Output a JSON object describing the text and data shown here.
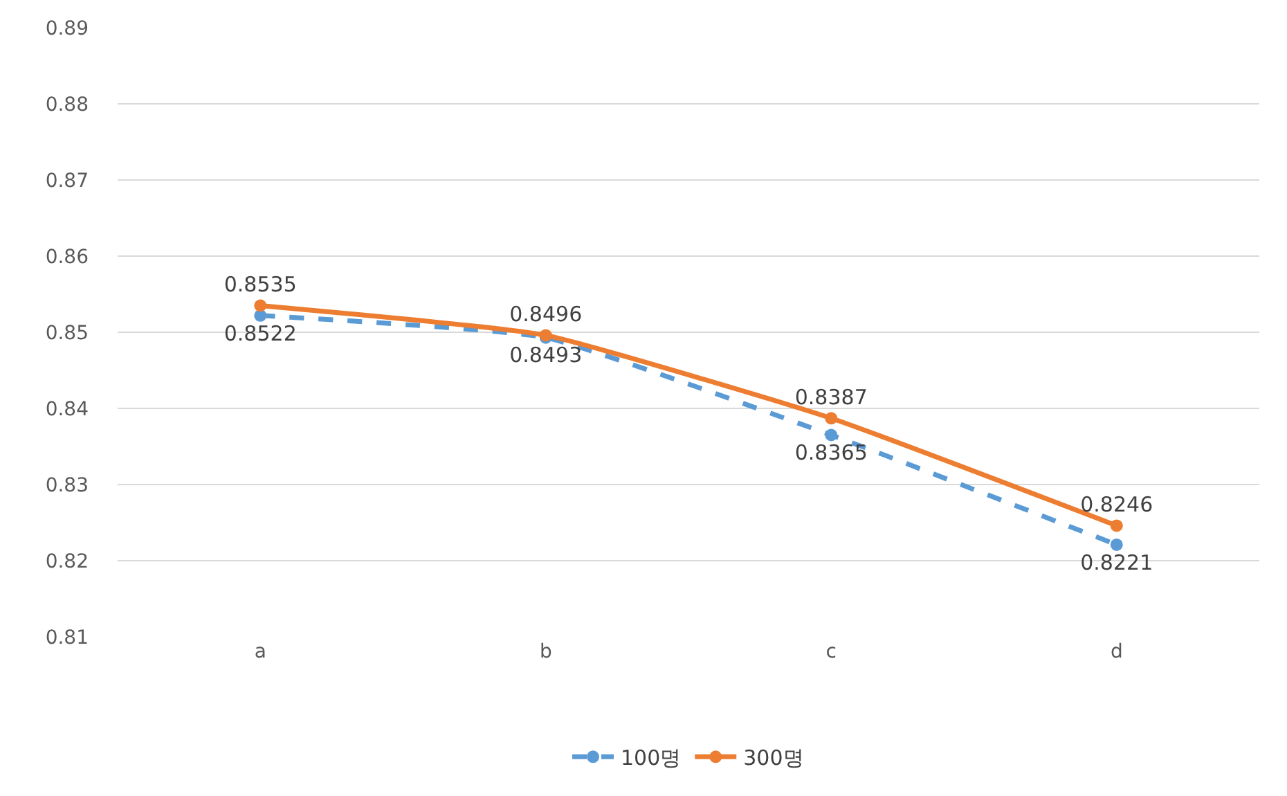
{
  "chart_data": {
    "type": "line",
    "categories": [
      "a",
      "b",
      "c",
      "d"
    ],
    "series": [
      {
        "name": "100명",
        "color": "#5b9bd5",
        "line_style": "dashed",
        "values": [
          0.8522,
          0.8493,
          0.8365,
          0.8221
        ]
      },
      {
        "name": "300명",
        "color": "#ed7d31",
        "line_style": "solid",
        "values": [
          0.8535,
          0.8496,
          0.8387,
          0.8246
        ]
      }
    ],
    "ylim": [
      0.81,
      0.89
    ],
    "yticks": [
      0.81,
      0.82,
      0.83,
      0.84,
      0.85,
      0.86,
      0.87,
      0.88,
      0.89
    ],
    "grid": "y",
    "legend": "bottom",
    "marker": "circle",
    "data_labels": true
  }
}
